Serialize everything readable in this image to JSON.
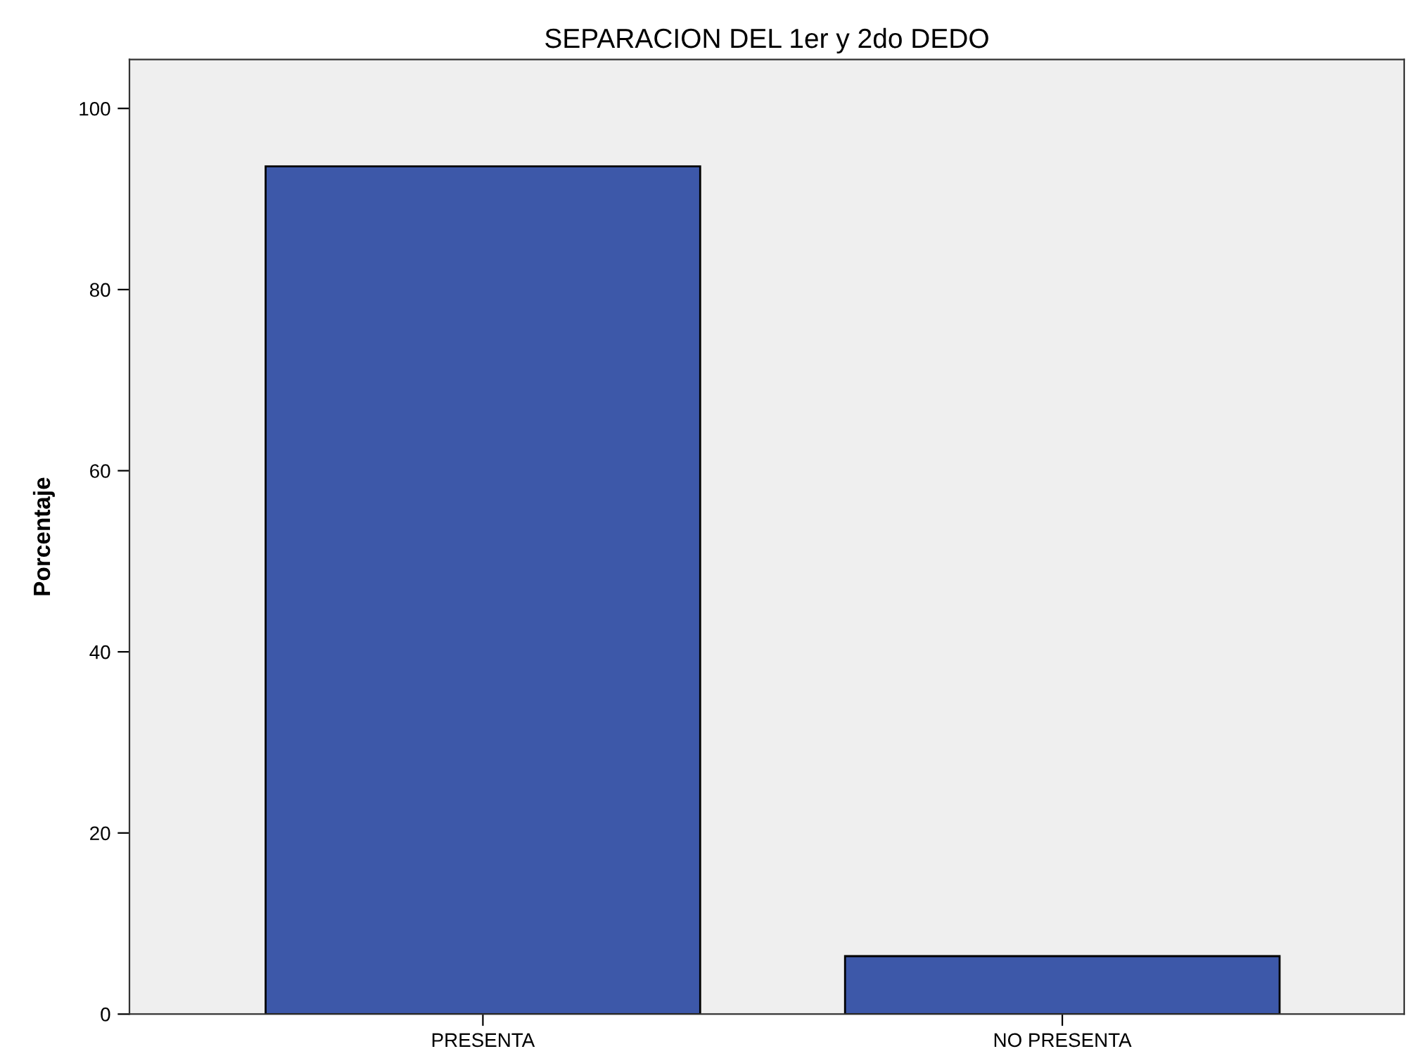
{
  "chart_data": {
    "type": "bar",
    "title": "SEPARACION DEL 1er y 2do DEDO",
    "ylabel": "Porcentaje",
    "categories": [
      "PRESENTA",
      "NO PRESENTA"
    ],
    "values": [
      93.6,
      6.4
    ],
    "color": "#3d58a9",
    "ylim": [
      0,
      105.4
    ],
    "yticks": [
      0,
      20,
      40,
      60,
      80,
      100
    ],
    "grid": false,
    "legend": false
  }
}
